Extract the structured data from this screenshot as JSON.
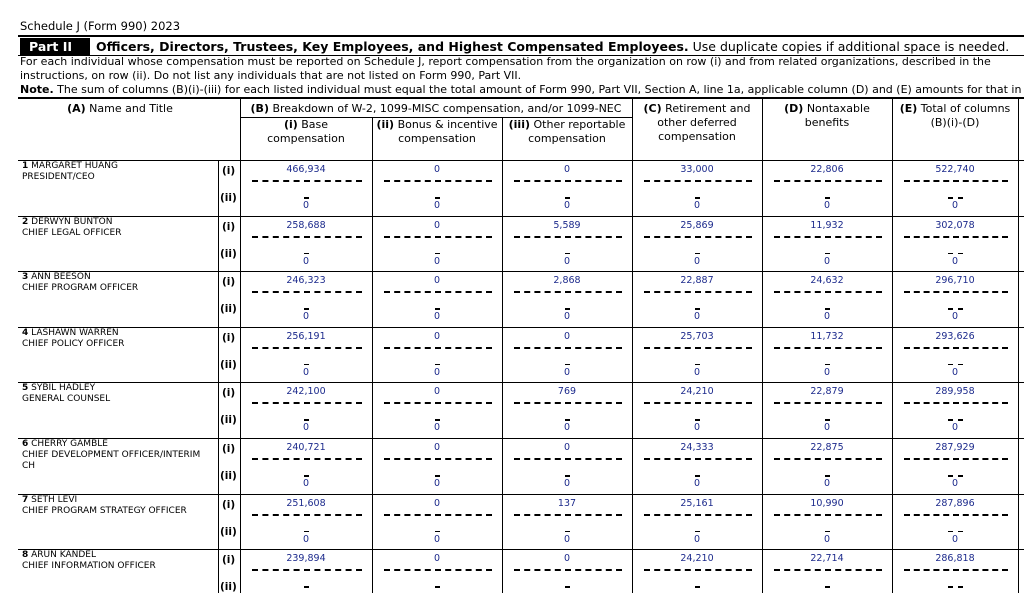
{
  "header": {
    "form_name": "Schedule J (Form 990) 2023"
  },
  "part": {
    "label": "Part II",
    "title": "Officers, Directors, Trustees, Key Employees, and Highest Compensated Employees.",
    "subtitle": "Use duplicate copies if additional space is needed."
  },
  "instructions": {
    "text": "For each individual whose compensation must be reported on Schedule J, report compensation from the organization on row (i) and from related organizations, described in the instructions, on row (ii). Do not list any individuals that are not listed on Form 990, Part VII.",
    "note_label": "Note.",
    "note_text": "The sum of columns (B)(i)-(iii) for each listed individual must equal the total amount of Form 990, Part VII, Section A, line 1a, applicable column (D) and (E) amounts for that in"
  },
  "table": {
    "col_a": {
      "label": "(A)",
      "text": "Name and Title"
    },
    "col_b": {
      "label": "(B)",
      "text": "Breakdown of W-2, 1099-MISC compensation, and/or 1099-NEC"
    },
    "sub_columns": [
      {
        "label": "(i)",
        "text": "Base compensation"
      },
      {
        "label": "(ii)",
        "text": "Bonus & incentive compensation"
      },
      {
        "label": "(iii)",
        "text": "Other reportable compensation"
      },
      {
        "label": "(C)",
        "text": "Retirement and other deferred compensation"
      },
      {
        "label": "(D)",
        "text": "Nontaxable benefits"
      },
      {
        "label": "(E)",
        "text": "Total of columns (B)(i)-(D)"
      }
    ],
    "row_labels": [
      "(i)",
      "(ii)"
    ],
    "people": [
      {
        "number": "1",
        "name": "MARGARET HUANG",
        "title": "PRESIDENT/CEO",
        "row_i": [
          "466,934",
          "0",
          "0",
          "33,000",
          "22,806",
          "522,740"
        ],
        "row_ii": [
          "0",
          "0",
          "0",
          "0",
          "0",
          "0"
        ]
      },
      {
        "number": "2",
        "name": "DERWYN BUNTON",
        "title": "CHIEF LEGAL OFFICER",
        "row_i": [
          "258,688",
          "0",
          "5,589",
          "25,869",
          "11,932",
          "302,078"
        ],
        "row_ii": [
          "0",
          "0",
          "0",
          "0",
          "0",
          "0"
        ]
      },
      {
        "number": "3",
        "name": "ANN BEESON",
        "title": "CHIEF PROGRAM OFFICER",
        "row_i": [
          "246,323",
          "0",
          "2,868",
          "22,887",
          "24,632",
          "296,710"
        ],
        "row_ii": [
          "0",
          "0",
          "0",
          "0",
          "0",
          "0"
        ]
      },
      {
        "number": "4",
        "name": "LASHAWN WARREN",
        "title": "CHIEF POLICY OFFICER",
        "row_i": [
          "256,191",
          "0",
          "0",
          "25,703",
          "11,732",
          "293,626"
        ],
        "row_ii": [
          "0",
          "0",
          "0",
          "0",
          "0",
          "0"
        ]
      },
      {
        "number": "5",
        "name": "SYBIL HADLEY",
        "title": "GENERAL COUNSEL",
        "row_i": [
          "242,100",
          "0",
          "769",
          "24,210",
          "22,879",
          "289,958"
        ],
        "row_ii": [
          "0",
          "0",
          "0",
          "0",
          "0",
          "0"
        ]
      },
      {
        "number": "6",
        "name": "CHERRY GAMBLE",
        "title": "CHIEF DEVELOPMENT OFFICER/INTERIM CH",
        "row_i": [
          "240,721",
          "0",
          "0",
          "24,333",
          "22,875",
          "287,929"
        ],
        "row_ii": [
          "0",
          "0",
          "0",
          "0",
          "0",
          "0"
        ]
      },
      {
        "number": "7",
        "name": "SETH LEVI",
        "title": "CHIEF PROGRAM STRATEGY OFFICER",
        "row_i": [
          "251,608",
          "0",
          "137",
          "25,161",
          "10,990",
          "287,896"
        ],
        "row_ii": [
          "0",
          "0",
          "0",
          "0",
          "0",
          "0"
        ]
      },
      {
        "number": "8",
        "name": "ARUN KANDEL",
        "title": "CHIEF INFORMATION OFFICER",
        "row_i": [
          "239,894",
          "0",
          "0",
          "24,210",
          "22,714",
          "286,818"
        ]
      }
    ]
  }
}
